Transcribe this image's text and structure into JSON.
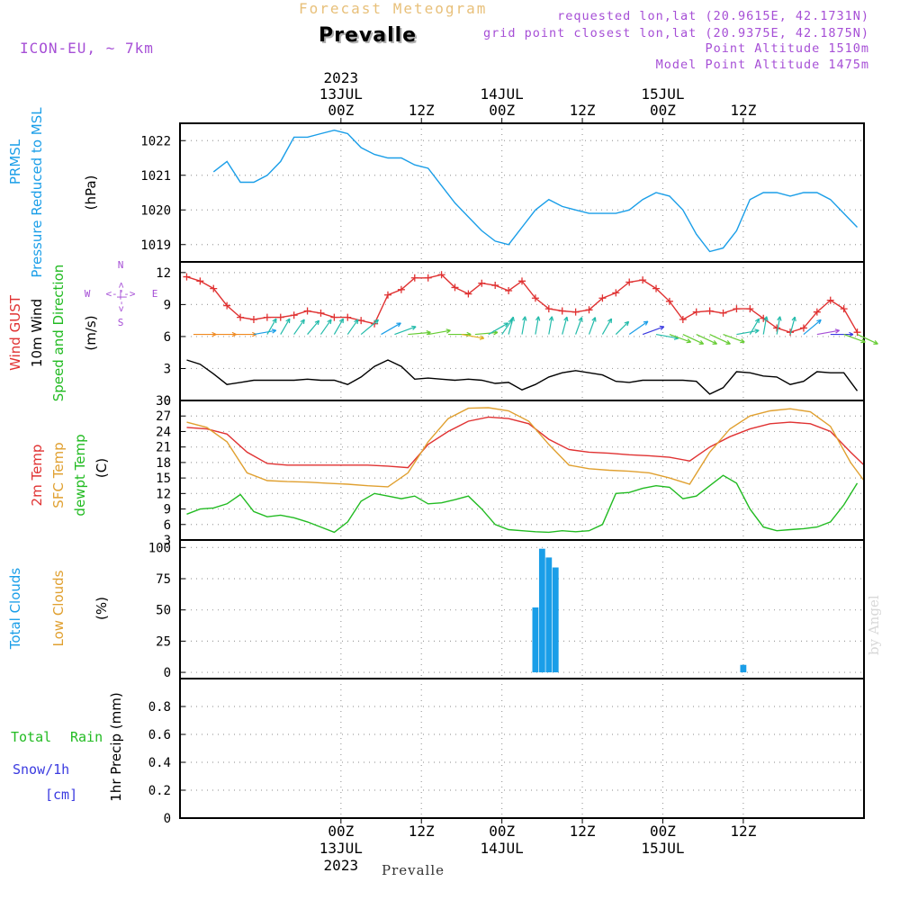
{
  "header": {
    "product": "ICON-EU, ~ 7km",
    "title": "Forecast Meteogram",
    "station": "Prevalle",
    "requested": "requested lon,lat (20.9615E, 42.1731N)",
    "grid_point": "grid point closest lon,lat (20.9375E, 42.1875N)",
    "point_altitude": "Point Altitude 1510m",
    "model_altitude": "Model Point Altitude 1475m",
    "bottom_station": "Prevalle",
    "watermark": "by Angel"
  },
  "colors": {
    "pressure": "#1a9ee8",
    "gust": "#e03232",
    "wind": "#000000",
    "dirlabel": "#22bb22",
    "t2m": "#e03232",
    "tsfc": "#e0a030",
    "dewpt": "#22bb22",
    "total_clouds": "#1a9ee8",
    "low_clouds": "#e0a030",
    "rain": "#22bb22",
    "snow": "#3a3ae0",
    "compass": "#a64fd6",
    "grid": "#a0a0a0"
  },
  "chart_data": [
    {
      "type": "line",
      "id": "pressure",
      "labels": [
        "PRMSL",
        "Pressure Reduced to MSL"
      ],
      "ylabel": "(hPa)",
      "ylim": [
        1018.5,
        1022.5
      ],
      "yticks": [
        1019,
        1020,
        1021,
        1022
      ],
      "series": [
        {
          "name": "PRMSL",
          "color": "pressure",
          "x": [
            -19,
            -17,
            -15,
            -13,
            -11,
            -9,
            -7,
            -5,
            -3,
            -1,
            1,
            3,
            5,
            7,
            9,
            11,
            13,
            15,
            17,
            19,
            21,
            23,
            25,
            27,
            29,
            31,
            33,
            35,
            37,
            39,
            41,
            43,
            45,
            47,
            49,
            51,
            53,
            55,
            57,
            59,
            61,
            63,
            65,
            67,
            69,
            71,
            73,
            75,
            77
          ],
          "y": [
            1021.1,
            1021.4,
            1020.8,
            1020.8,
            1021.0,
            1021.4,
            1022.1,
            1022.1,
            1022.2,
            1022.3,
            1022.2,
            1021.8,
            1021.6,
            1021.5,
            1021.5,
            1021.3,
            1021.2,
            1020.7,
            1020.2,
            1019.8,
            1019.4,
            1019.1,
            1019.0,
            1019.5,
            1020.0,
            1020.3,
            1020.1,
            1020.0,
            1019.9,
            1019.9,
            1019.9,
            1020.0,
            1020.3,
            1020.5,
            1020.4,
            1020.0,
            1019.3,
            1018.8,
            1018.9,
            1019.4,
            1020.3,
            1020.5,
            1020.5,
            1020.4,
            1020.5,
            1020.5,
            1020.3,
            1019.9,
            1019.5
          ]
        }
      ]
    },
    {
      "type": "line",
      "id": "wind",
      "labels": [
        "Wind GUST",
        "10m Wind",
        "Speed and Direction"
      ],
      "ylabel": "(m/s)",
      "compass": [
        "N",
        "W",
        "E",
        "S",
        "<-|->"
      ],
      "ylim": [
        0,
        13
      ],
      "yticks": [
        0,
        3,
        6,
        9,
        12
      ],
      "series": [
        {
          "name": "Wind GUST",
          "color": "gust",
          "markers": true,
          "x": [
            -23,
            -21,
            -19,
            -17,
            -15,
            -13,
            -11,
            -9,
            -7,
            -5,
            -3,
            -1,
            1,
            3,
            5,
            7,
            9,
            11,
            13,
            15,
            17,
            19,
            21,
            23,
            25,
            27,
            29,
            31,
            33,
            35,
            37,
            39,
            41,
            43,
            45,
            47,
            49,
            51,
            53,
            55,
            57,
            59,
            61,
            63,
            65,
            67,
            69,
            71,
            73,
            75,
            77
          ],
          "y": [
            11.6,
            11.2,
            10.5,
            8.9,
            7.8,
            7.6,
            7.8,
            7.8,
            8.0,
            8.4,
            8.2,
            7.8,
            7.8,
            7.5,
            7.2,
            9.9,
            10.4,
            11.5,
            11.5,
            11.8,
            10.6,
            10.0,
            11.0,
            10.8,
            10.3,
            11.2,
            9.6,
            8.6,
            8.4,
            8.3,
            8.5,
            9.6,
            10.1,
            11.1,
            11.3,
            10.5,
            9.3,
            7.6,
            8.3,
            8.4,
            8.2,
            8.6,
            8.6,
            7.7,
            6.8,
            6.4,
            6.8,
            8.3,
            9.4,
            8.6,
            6.4
          ]
        },
        {
          "name": "10m Wind",
          "color": "wind",
          "x": [
            -23,
            -21,
            -19,
            -17,
            -15,
            -13,
            -11,
            -9,
            -7,
            -5,
            -3,
            -1,
            1,
            3,
            5,
            7,
            9,
            11,
            13,
            15,
            17,
            19,
            21,
            23,
            25,
            27,
            29,
            31,
            33,
            35,
            37,
            39,
            41,
            43,
            45,
            47,
            49,
            51,
            53,
            55,
            57,
            59,
            61,
            63,
            65,
            67,
            69,
            71,
            73,
            75,
            77
          ],
          "y": [
            3.8,
            3.4,
            2.5,
            1.5,
            1.7,
            1.9,
            1.9,
            1.9,
            1.9,
            2.0,
            1.9,
            1.9,
            1.5,
            2.2,
            3.2,
            3.8,
            3.2,
            2.0,
            2.1,
            2.0,
            1.9,
            2.0,
            1.9,
            1.6,
            1.7,
            1.0,
            1.5,
            2.2,
            2.6,
            2.8,
            2.6,
            2.4,
            1.8,
            1.7,
            1.9,
            1.9,
            1.9,
            1.9,
            1.8,
            0.6,
            1.2,
            2.7,
            2.6,
            2.3,
            2.2,
            1.5,
            1.8,
            2.7,
            2.6,
            2.6,
            0.9
          ]
        }
      ]
    },
    {
      "type": "line",
      "id": "temperature",
      "labels": [
        "2m Temp",
        "SFC Temp",
        "dewpt Temp"
      ],
      "ylabel": "(C)",
      "ylim": [
        3,
        30
      ],
      "yticks": [
        3,
        6,
        9,
        12,
        15,
        18,
        21,
        24,
        27,
        30
      ],
      "series": [
        {
          "name": "2m Temp",
          "color": "t2m",
          "x": [
            -23,
            -20,
            -17,
            -14,
            -11,
            -8,
            -5,
            -2,
            1,
            4,
            7,
            10,
            13,
            16,
            19,
            22,
            25,
            28,
            31,
            34,
            37,
            40,
            43,
            46,
            49,
            52,
            55,
            58,
            61,
            64,
            67,
            70,
            73,
            76,
            78
          ],
          "y": [
            24.8,
            24.5,
            23.5,
            20.0,
            17.8,
            17.5,
            17.5,
            17.5,
            17.5,
            17.5,
            17.3,
            17.0,
            21.5,
            24.0,
            26.0,
            26.8,
            26.5,
            25.5,
            22.5,
            20.5,
            20.0,
            19.8,
            19.5,
            19.3,
            19.0,
            18.3,
            21.0,
            23.0,
            24.5,
            25.5,
            25.8,
            25.5,
            24.0,
            20.0,
            17.5
          ]
        },
        {
          "name": "SFC Temp",
          "color": "tsfc",
          "x": [
            -23,
            -20,
            -17,
            -14,
            -11,
            -8,
            -5,
            -2,
            1,
            4,
            7,
            10,
            13,
            16,
            19,
            22,
            25,
            28,
            31,
            34,
            37,
            40,
            43,
            46,
            49,
            52,
            55,
            58,
            61,
            64,
            67,
            70,
            73,
            76,
            78
          ],
          "y": [
            25.8,
            24.8,
            22.0,
            16.0,
            14.5,
            14.3,
            14.2,
            14.0,
            13.8,
            13.5,
            13.3,
            16.0,
            22.0,
            26.5,
            28.5,
            28.6,
            28.0,
            26.0,
            21.5,
            17.5,
            16.8,
            16.5,
            16.3,
            16.0,
            15.0,
            13.8,
            20.0,
            24.5,
            27.0,
            28.0,
            28.4,
            27.8,
            25.0,
            18.0,
            14.5
          ]
        },
        {
          "name": "dewpt Temp",
          "color": "dewpt",
          "x": [
            -23,
            -21,
            -19,
            -17,
            -15,
            -13,
            -11,
            -9,
            -7,
            -5,
            -3,
            -1,
            1,
            3,
            5,
            7,
            9,
            11,
            13,
            15,
            17,
            19,
            21,
            23,
            25,
            27,
            29,
            31,
            33,
            35,
            37,
            39,
            41,
            43,
            45,
            47,
            49,
            51,
            53,
            55,
            57,
            59,
            61,
            63,
            65,
            67,
            69,
            71,
            73,
            75,
            77
          ],
          "y": [
            8.0,
            9.0,
            9.2,
            10.0,
            11.8,
            8.5,
            7.5,
            7.8,
            7.3,
            6.5,
            5.5,
            4.5,
            6.5,
            10.5,
            12.0,
            11.5,
            11.0,
            11.5,
            10.0,
            10.2,
            10.8,
            11.5,
            9.0,
            6.0,
            5.0,
            4.8,
            4.6,
            4.5,
            4.8,
            4.6,
            4.8,
            6.0,
            12.0,
            12.2,
            13.0,
            13.5,
            13.2,
            11.0,
            11.5,
            13.5,
            15.5,
            14.0,
            9.0,
            5.5,
            4.8,
            5.0,
            5.2,
            5.5,
            6.5,
            9.8,
            14.0
          ]
        }
      ]
    },
    {
      "type": "bar",
      "id": "clouds",
      "labels": [
        "Total Clouds",
        "Low Clouds"
      ],
      "ylabel": "(%)",
      "ylim": [
        -5,
        106
      ],
      "yticks": [
        0,
        25,
        50,
        75,
        100
      ],
      "series": [
        {
          "name": "Total Clouds",
          "color": "total_clouds",
          "x": [
            29,
            30,
            31,
            32,
            60
          ],
          "y": [
            52,
            99,
            92,
            84,
            6
          ]
        },
        {
          "name": "Low Clouds",
          "color": "low_clouds",
          "x": [],
          "y": []
        }
      ]
    },
    {
      "type": "bar",
      "id": "precip",
      "labels": [
        "Total",
        "Rain",
        "Snow/1h",
        "[cm]"
      ],
      "ylabel": "1hr Precip (mm)",
      "ylim": [
        0,
        1.0
      ],
      "yticks": [
        0,
        0.2,
        0.4,
        0.6,
        0.8
      ],
      "series": [
        {
          "name": "Total Rain",
          "color": "rain",
          "x": [],
          "y": []
        },
        {
          "name": "Snow/1h",
          "color": "snow",
          "x": [],
          "y": []
        }
      ]
    }
  ],
  "time_axis": {
    "xlim": [
      -24,
      78
    ],
    "ticks": [
      {
        "hour": 0,
        "top": [
          "2023",
          "13JUL",
          "00Z"
        ],
        "bottom": [
          "00Z",
          "13JUL",
          "2023"
        ]
      },
      {
        "hour": 12,
        "top": [
          "12Z"
        ],
        "bottom": [
          "12Z"
        ]
      },
      {
        "hour": 24,
        "top": [
          "14JUL",
          "00Z"
        ],
        "bottom": [
          "00Z",
          "14JUL"
        ]
      },
      {
        "hour": 36,
        "top": [
          "12Z"
        ],
        "bottom": [
          "12Z"
        ]
      },
      {
        "hour": 48,
        "top": [
          "15JUL",
          "00Z"
        ],
        "bottom": [
          "00Z",
          "15JUL"
        ]
      },
      {
        "hour": 60,
        "top": [
          "12Z"
        ],
        "bottom": [
          "12Z"
        ]
      }
    ]
  }
}
